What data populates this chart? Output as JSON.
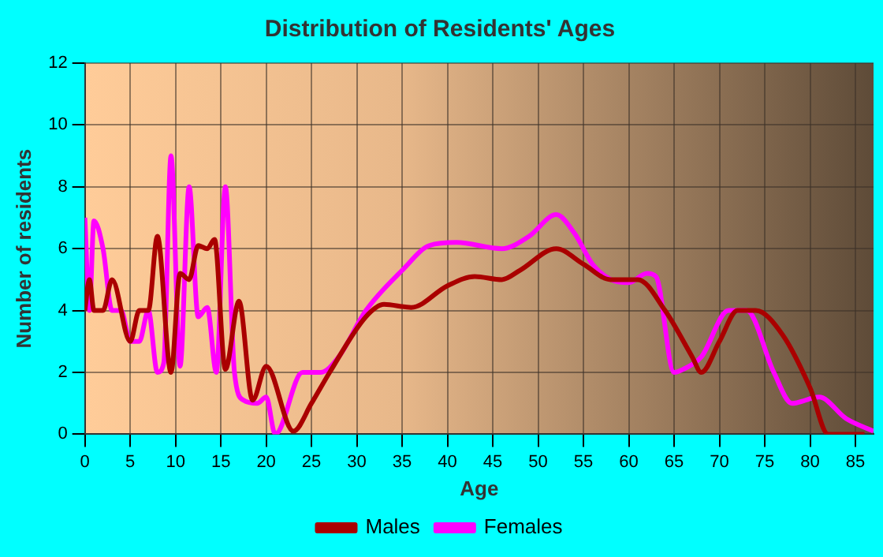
{
  "chart_data": {
    "type": "line",
    "title": "Distribution of Residents' Ages",
    "xlabel": "Age",
    "ylabel": "Number of residents",
    "xlim": [
      0,
      87
    ],
    "xticks": [
      0,
      5,
      10,
      15,
      20,
      25,
      30,
      35,
      40,
      45,
      50,
      55,
      60,
      65,
      70,
      75,
      80,
      85
    ],
    "ylim": [
      0,
      12
    ],
    "yticks": [
      0,
      2,
      4,
      6,
      8,
      10,
      12
    ],
    "grid": true,
    "legend": "bottom",
    "series": [
      {
        "name": "Males",
        "color": "#aa0000",
        "x": [
          0,
          0.5,
          1,
          2,
          3,
          5,
          6,
          7,
          8,
          9.5,
          10.5,
          11.5,
          12.5,
          13.5,
          14.3,
          15.5,
          17,
          18.5,
          20,
          23,
          25,
          27,
          31,
          33,
          36,
          40,
          43,
          46,
          48,
          52,
          55,
          58,
          61,
          64,
          67,
          68,
          70,
          72,
          74,
          77,
          80,
          82,
          86
        ],
        "values": [
          4,
          5,
          4,
          4,
          5,
          3,
          4,
          4,
          6.4,
          2,
          5.2,
          5,
          6.1,
          6,
          6.3,
          2.1,
          4.3,
          1.1,
          2.2,
          0.1,
          1,
          2,
          3.8,
          4.2,
          4.1,
          4.8,
          5.1,
          5,
          5.3,
          6,
          5.5,
          5,
          5,
          4,
          2.5,
          2,
          3,
          4,
          4,
          3.2,
          1.5,
          0,
          0
        ]
      },
      {
        "name": "Females",
        "color": "#ff00ff",
        "x": [
          0,
          0.5,
          1,
          2,
          3,
          4,
          5,
          6,
          7,
          8,
          8.7,
          9.5,
          10.5,
          11.5,
          12.5,
          13.5,
          14.5,
          15.5,
          16.5,
          17.5,
          19,
          20,
          21,
          24,
          26,
          28,
          31,
          35,
          38,
          41,
          46,
          49,
          52,
          54,
          56,
          58,
          60,
          62,
          63,
          65,
          66,
          68,
          71,
          73,
          76,
          78,
          81,
          84,
          87
        ],
        "values": [
          7,
          4,
          6.9,
          6,
          4,
          4,
          3,
          3,
          4,
          2,
          2.3,
          9,
          2.2,
          8,
          3.8,
          4.1,
          2,
          8,
          2,
          1.1,
          1,
          1.2,
          0,
          2,
          2,
          2.5,
          4,
          5.3,
          6.1,
          6.2,
          6,
          6.4,
          7.1,
          6.5,
          5.5,
          5,
          4.9,
          5.2,
          5.1,
          2,
          2.1,
          2.5,
          4,
          4,
          2,
          1,
          1.2,
          0.5,
          0.1
        ]
      }
    ]
  }
}
